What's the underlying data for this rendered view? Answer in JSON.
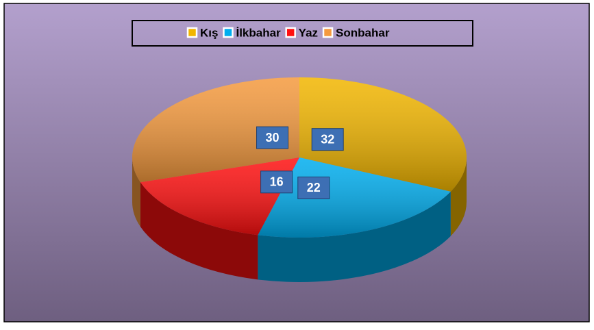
{
  "chart_data": {
    "type": "pie3d",
    "categories": [
      "Kış",
      "İlkbahar",
      "Yaz",
      "Sonbahar"
    ],
    "values": [
      32,
      22,
      16,
      30
    ],
    "colors": [
      "#f2b600",
      "#00aeef",
      "#ff1010",
      "#f59a3e"
    ],
    "legend": "top"
  }
}
